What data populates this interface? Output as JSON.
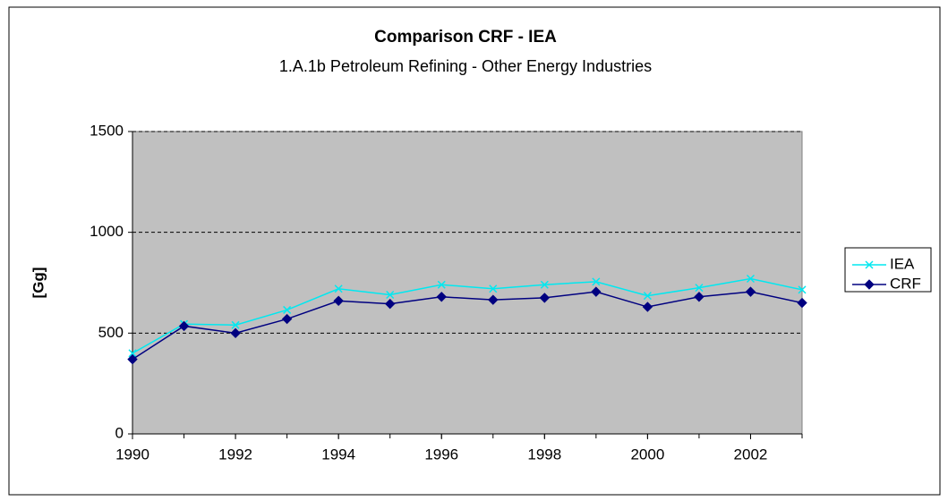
{
  "chart_data": {
    "type": "line",
    "title": "Comparison CRF - IEA",
    "subtitle": "1.A.1b Petroleum Refining - Other Energy Industries",
    "y_label": "[Gg]",
    "x": [
      1990,
      1991,
      1992,
      1993,
      1994,
      1995,
      1996,
      1997,
      1998,
      1999,
      2000,
      2001,
      2002,
      2003
    ],
    "xlim": [
      1990,
      2003
    ],
    "xticks": [
      1990,
      1992,
      1994,
      1996,
      1998,
      2000,
      2002
    ],
    "ylim": [
      0,
      1500
    ],
    "yticks": [
      0,
      500,
      1000,
      1500
    ],
    "grid": true,
    "legend": "right",
    "series": [
      {
        "name": "IEA",
        "color": "#00e8f0",
        "marker": "x",
        "values": [
          400,
          545,
          540,
          615,
          720,
          690,
          740,
          720,
          740,
          755,
          685,
          725,
          770,
          715
        ]
      },
      {
        "name": "CRF",
        "color": "#000080",
        "marker": "diamond",
        "values": [
          370,
          535,
          500,
          570,
          660,
          645,
          680,
          665,
          675,
          705,
          630,
          680,
          705,
          650
        ]
      }
    ]
  }
}
